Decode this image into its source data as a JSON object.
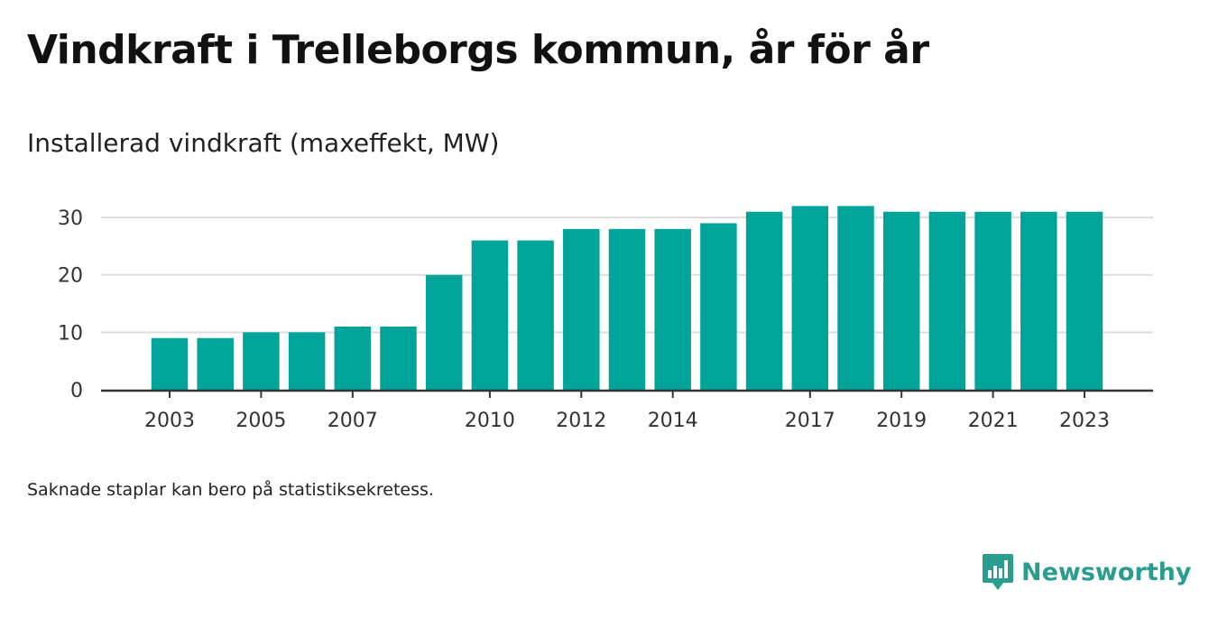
{
  "title": "Vindkraft i Trelleborgs kommun, år för år",
  "subtitle": "Installerad vindkraft (maxeffekt, MW)",
  "note": "Saknade staplar kan bero på statistiksekretess.",
  "brand": {
    "name": "Newsworthy",
    "icon": "newsworthy-logo-icon",
    "color": "#2a9d8f"
  },
  "colors": {
    "bar": "#00a498",
    "grid": "#dddddd",
    "axis": "#333333"
  },
  "chart_data": {
    "type": "bar",
    "x": [
      2003,
      2004,
      2005,
      2006,
      2007,
      2008,
      2009,
      2010,
      2011,
      2012,
      2013,
      2014,
      2015,
      2016,
      2017,
      2018,
      2019,
      2020,
      2021,
      2022,
      2023
    ],
    "values": [
      9,
      9,
      10,
      10,
      11,
      11,
      20,
      26,
      26,
      28,
      28,
      28,
      29,
      31,
      32,
      32,
      31,
      31,
      31,
      31,
      31
    ],
    "x_tick_labels": [
      "2003",
      "2005",
      "2007",
      "2010",
      "2012",
      "2014",
      "2017",
      "2019",
      "2021",
      "2023"
    ],
    "y_ticks": [
      0,
      10,
      20,
      30
    ],
    "ylim": [
      0,
      33
    ],
    "xlabel": "",
    "ylabel": "",
    "grid": true,
    "legend": false
  }
}
